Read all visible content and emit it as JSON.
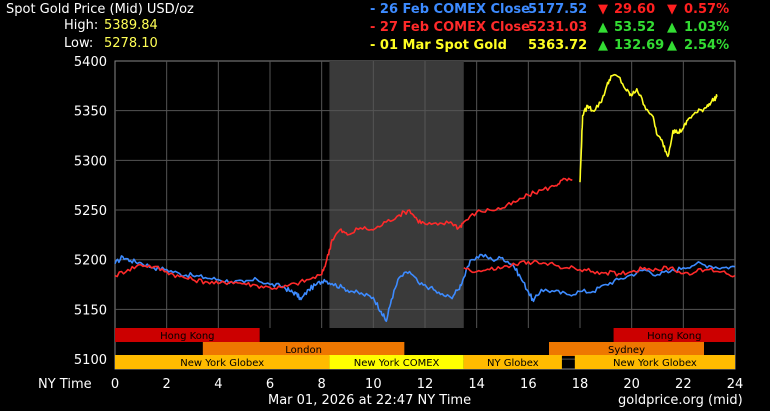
{
  "header": {
    "title": "Spot Gold Price (Mid) USD/oz",
    "high_label": "High:",
    "high_value": "5389.84",
    "low_label": "Low:",
    "low_value": "5278.10"
  },
  "legend": [
    {
      "label": "- 26 Feb COMEX Close",
      "price": "5177.52",
      "arrow": "▼",
      "change": "29.60",
      "arrow_pct": "▼",
      "pct": "0.57%",
      "color": "#3d8bff",
      "change_color": "#ff2020"
    },
    {
      "label": "- 27 Feb COMEX Close",
      "price": "5231.03",
      "arrow": "▲",
      "change": "53.52",
      "arrow_pct": "▲",
      "pct": "1.03%",
      "color": "#ff2a2a",
      "change_color": "#33dd33"
    },
    {
      "label": "- 01 Mar Spot Gold",
      "price": "5363.72",
      "arrow": "▲",
      "change": "132.69",
      "arrow_pct": "▲",
      "pct": "2.54%",
      "color": "#ffff22",
      "change_color": "#33dd33"
    }
  ],
  "sessions": {
    "row1": [
      {
        "name": "Hong Kong",
        "start": 0,
        "end": 5.6,
        "color": "#cc0000"
      },
      {
        "name": "Hong Kong",
        "start": 19.3,
        "end": 24,
        "color": "#cc0000"
      }
    ],
    "row2": [
      {
        "name": "London",
        "start": 3.4,
        "end": 11.2,
        "color": "#ee7700"
      },
      {
        "name": "Sydney",
        "start": 16.8,
        "end": 22.8,
        "color": "#ee7700"
      }
    ],
    "row3": [
      {
        "name": "New York Globex",
        "start": 0,
        "end": 8.3,
        "color": "#ffbb00"
      },
      {
        "name": "New York COMEX",
        "start": 8.3,
        "end": 13.5,
        "color": "#ffff00"
      },
      {
        "name": "NY Globex",
        "start": 13.5,
        "end": 17.3,
        "color": "#ffbb00"
      },
      {
        "name": "New York Globex",
        "start": 17.8,
        "end": 24,
        "color": "#ffbb00"
      }
    ]
  },
  "footer": {
    "timestamp": "Mar 01, 2026 at 22:47 NY Time",
    "source": "goldprice.org (mid)"
  },
  "chart_data": {
    "type": "line",
    "title": "Spot Gold Price (Mid) USD/oz",
    "xlabel": "NY Time",
    "ylabel": "",
    "xlim": [
      0,
      24
    ],
    "ylim": [
      5090,
      5400
    ],
    "x_ticks": [
      0,
      2,
      4,
      6,
      8,
      10,
      12,
      14,
      16,
      18,
      20,
      22,
      24
    ],
    "y_ticks": [
      5100,
      5150,
      5200,
      5250,
      5300,
      5350,
      5400
    ],
    "grid": true,
    "shaded_range": [
      8.3,
      13.5
    ],
    "series": [
      {
        "name": "26 Feb COMEX Close",
        "color": "#3d8bff",
        "points": [
          [
            0,
            5196
          ],
          [
            0.3,
            5203
          ],
          [
            0.6,
            5199
          ],
          [
            1,
            5197
          ],
          [
            1.5,
            5192
          ],
          [
            2,
            5190
          ],
          [
            2.5,
            5186
          ],
          [
            3,
            5184
          ],
          [
            3.5,
            5182
          ],
          [
            4,
            5180
          ],
          [
            4.5,
            5178
          ],
          [
            5,
            5177
          ],
          [
            5.5,
            5180
          ],
          [
            6,
            5175
          ],
          [
            6.5,
            5173
          ],
          [
            6.8,
            5168
          ],
          [
            7,
            5166
          ],
          [
            7.2,
            5160
          ],
          [
            7.5,
            5170
          ],
          [
            7.8,
            5175
          ],
          [
            8.1,
            5180
          ],
          [
            8.4,
            5176
          ],
          [
            8.8,
            5172
          ],
          [
            9.2,
            5168
          ],
          [
            9.6,
            5165
          ],
          [
            10,
            5162
          ],
          [
            10.3,
            5148
          ],
          [
            10.5,
            5138
          ],
          [
            10.7,
            5160
          ],
          [
            11,
            5182
          ],
          [
            11.4,
            5188
          ],
          [
            11.8,
            5175
          ],
          [
            12.2,
            5172
          ],
          [
            12.6,
            5165
          ],
          [
            13,
            5162
          ],
          [
            13.3,
            5170
          ],
          [
            13.5,
            5182
          ],
          [
            13.8,
            5200
          ],
          [
            14.2,
            5205
          ],
          [
            14.6,
            5200
          ],
          [
            15,
            5202
          ],
          [
            15.4,
            5195
          ],
          [
            15.7,
            5182
          ],
          [
            16,
            5168
          ],
          [
            16.2,
            5158
          ],
          [
            16.5,
            5170
          ],
          [
            17,
            5168
          ],
          [
            17.5,
            5165
          ],
          [
            18,
            5168
          ],
          [
            18.5,
            5168
          ],
          [
            19,
            5175
          ],
          [
            19.5,
            5180
          ],
          [
            20,
            5185
          ],
          [
            20.5,
            5190
          ],
          [
            21,
            5185
          ],
          [
            21.5,
            5188
          ],
          [
            22,
            5192
          ],
          [
            22.5,
            5196
          ],
          [
            23,
            5194
          ],
          [
            23.5,
            5192
          ],
          [
            24,
            5193
          ]
        ]
      },
      {
        "name": "27 Feb COMEX Close",
        "color": "#ff2a2a",
        "points": [
          [
            0,
            5184
          ],
          [
            0.5,
            5190
          ],
          [
            1,
            5195
          ],
          [
            1.5,
            5193
          ],
          [
            2,
            5188
          ],
          [
            2.5,
            5183
          ],
          [
            3,
            5180
          ],
          [
            3.5,
            5178
          ],
          [
            4,
            5176
          ],
          [
            4.5,
            5178
          ],
          [
            5,
            5176
          ],
          [
            5.5,
            5174
          ],
          [
            6,
            5172
          ],
          [
            6.5,
            5172
          ],
          [
            7,
            5176
          ],
          [
            7.5,
            5180
          ],
          [
            8,
            5185
          ],
          [
            8.2,
            5200
          ],
          [
            8.4,
            5220
          ],
          [
            8.7,
            5230
          ],
          [
            9,
            5225
          ],
          [
            9.5,
            5232
          ],
          [
            10,
            5230
          ],
          [
            10.5,
            5238
          ],
          [
            11,
            5245
          ],
          [
            11.4,
            5250
          ],
          [
            11.7,
            5240
          ],
          [
            12,
            5236
          ],
          [
            12.5,
            5235
          ],
          [
            13,
            5238
          ],
          [
            13.3,
            5232
          ],
          [
            13.5,
            5238
          ],
          [
            14,
            5248
          ],
          [
            14.5,
            5250
          ],
          [
            15,
            5252
          ],
          [
            15.5,
            5258
          ],
          [
            16,
            5265
          ],
          [
            16.5,
            5270
          ],
          [
            17,
            5274
          ],
          [
            17.3,
            5280
          ],
          [
            17.7,
            5280
          ]
        ],
        "points_2": [
          [
            13.5,
            5192
          ],
          [
            14,
            5188
          ],
          [
            14.5,
            5190
          ],
          [
            15,
            5192
          ],
          [
            15.5,
            5195
          ],
          [
            16,
            5198
          ],
          [
            16.5,
            5196
          ],
          [
            17,
            5195
          ],
          [
            17.5,
            5192
          ],
          [
            18,
            5190
          ],
          [
            18.5,
            5188
          ],
          [
            19,
            5187
          ],
          [
            19.5,
            5186
          ],
          [
            20,
            5188
          ],
          [
            20.5,
            5192
          ],
          [
            21,
            5190
          ],
          [
            21.5,
            5192
          ],
          [
            22,
            5186
          ],
          [
            22.5,
            5188
          ],
          [
            23,
            5190
          ],
          [
            23.5,
            5188
          ],
          [
            24,
            5184
          ]
        ]
      },
      {
        "name": "01 Mar Spot Gold",
        "color": "#ffff22",
        "points": [
          [
            18,
            5278
          ],
          [
            18.05,
            5310
          ],
          [
            18.1,
            5345
          ],
          [
            18.3,
            5355
          ],
          [
            18.5,
            5350
          ],
          [
            18.8,
            5358
          ],
          [
            19,
            5372
          ],
          [
            19.2,
            5385
          ],
          [
            19.5,
            5384
          ],
          [
            19.8,
            5370
          ],
          [
            20,
            5365
          ],
          [
            20.2,
            5372
          ],
          [
            20.5,
            5355
          ],
          [
            20.8,
            5345
          ],
          [
            21,
            5325
          ],
          [
            21.2,
            5318
          ],
          [
            21.4,
            5304
          ],
          [
            21.6,
            5330
          ],
          [
            21.8,
            5328
          ],
          [
            22,
            5332
          ],
          [
            22.2,
            5342
          ],
          [
            22.5,
            5348
          ],
          [
            22.8,
            5352
          ],
          [
            23,
            5357
          ],
          [
            23.2,
            5362
          ],
          [
            23.3,
            5364
          ]
        ]
      }
    ]
  }
}
